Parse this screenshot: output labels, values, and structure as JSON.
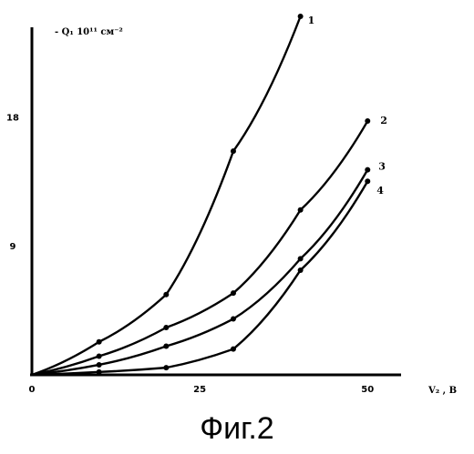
{
  "chart_data": {
    "type": "line",
    "ylabel": "- Q₁ 10¹¹ см⁻²",
    "xlabel": "V₂ , B",
    "xlim": [
      0,
      52
    ],
    "ylim": [
      0,
      25
    ],
    "xticks": [
      0,
      25,
      50
    ],
    "xtick_labels": [
      "0",
      "25",
      "50"
    ],
    "yticks": [
      9,
      18
    ],
    "ytick_labels": [
      "9",
      "18"
    ],
    "grid": false,
    "series": [
      {
        "name": "1",
        "x": [
          0,
          10,
          20,
          30,
          40
        ],
        "y": [
          0,
          2.3,
          5.6,
          15.6,
          25.0
        ]
      },
      {
        "name": "2",
        "x": [
          0,
          10,
          20,
          30,
          40,
          50
        ],
        "y": [
          0,
          1.3,
          3.3,
          5.7,
          11.5,
          17.7
        ]
      },
      {
        "name": "3",
        "x": [
          0,
          10,
          20,
          30,
          40,
          50
        ],
        "y": [
          0,
          0.7,
          2.0,
          3.9,
          8.1,
          14.3
        ]
      },
      {
        "name": "4",
        "x": [
          0,
          10,
          20,
          30,
          40,
          50
        ],
        "y": [
          0,
          0.2,
          0.5,
          1.8,
          7.3,
          13.5
        ]
      }
    ]
  },
  "caption": "Фиг.2"
}
